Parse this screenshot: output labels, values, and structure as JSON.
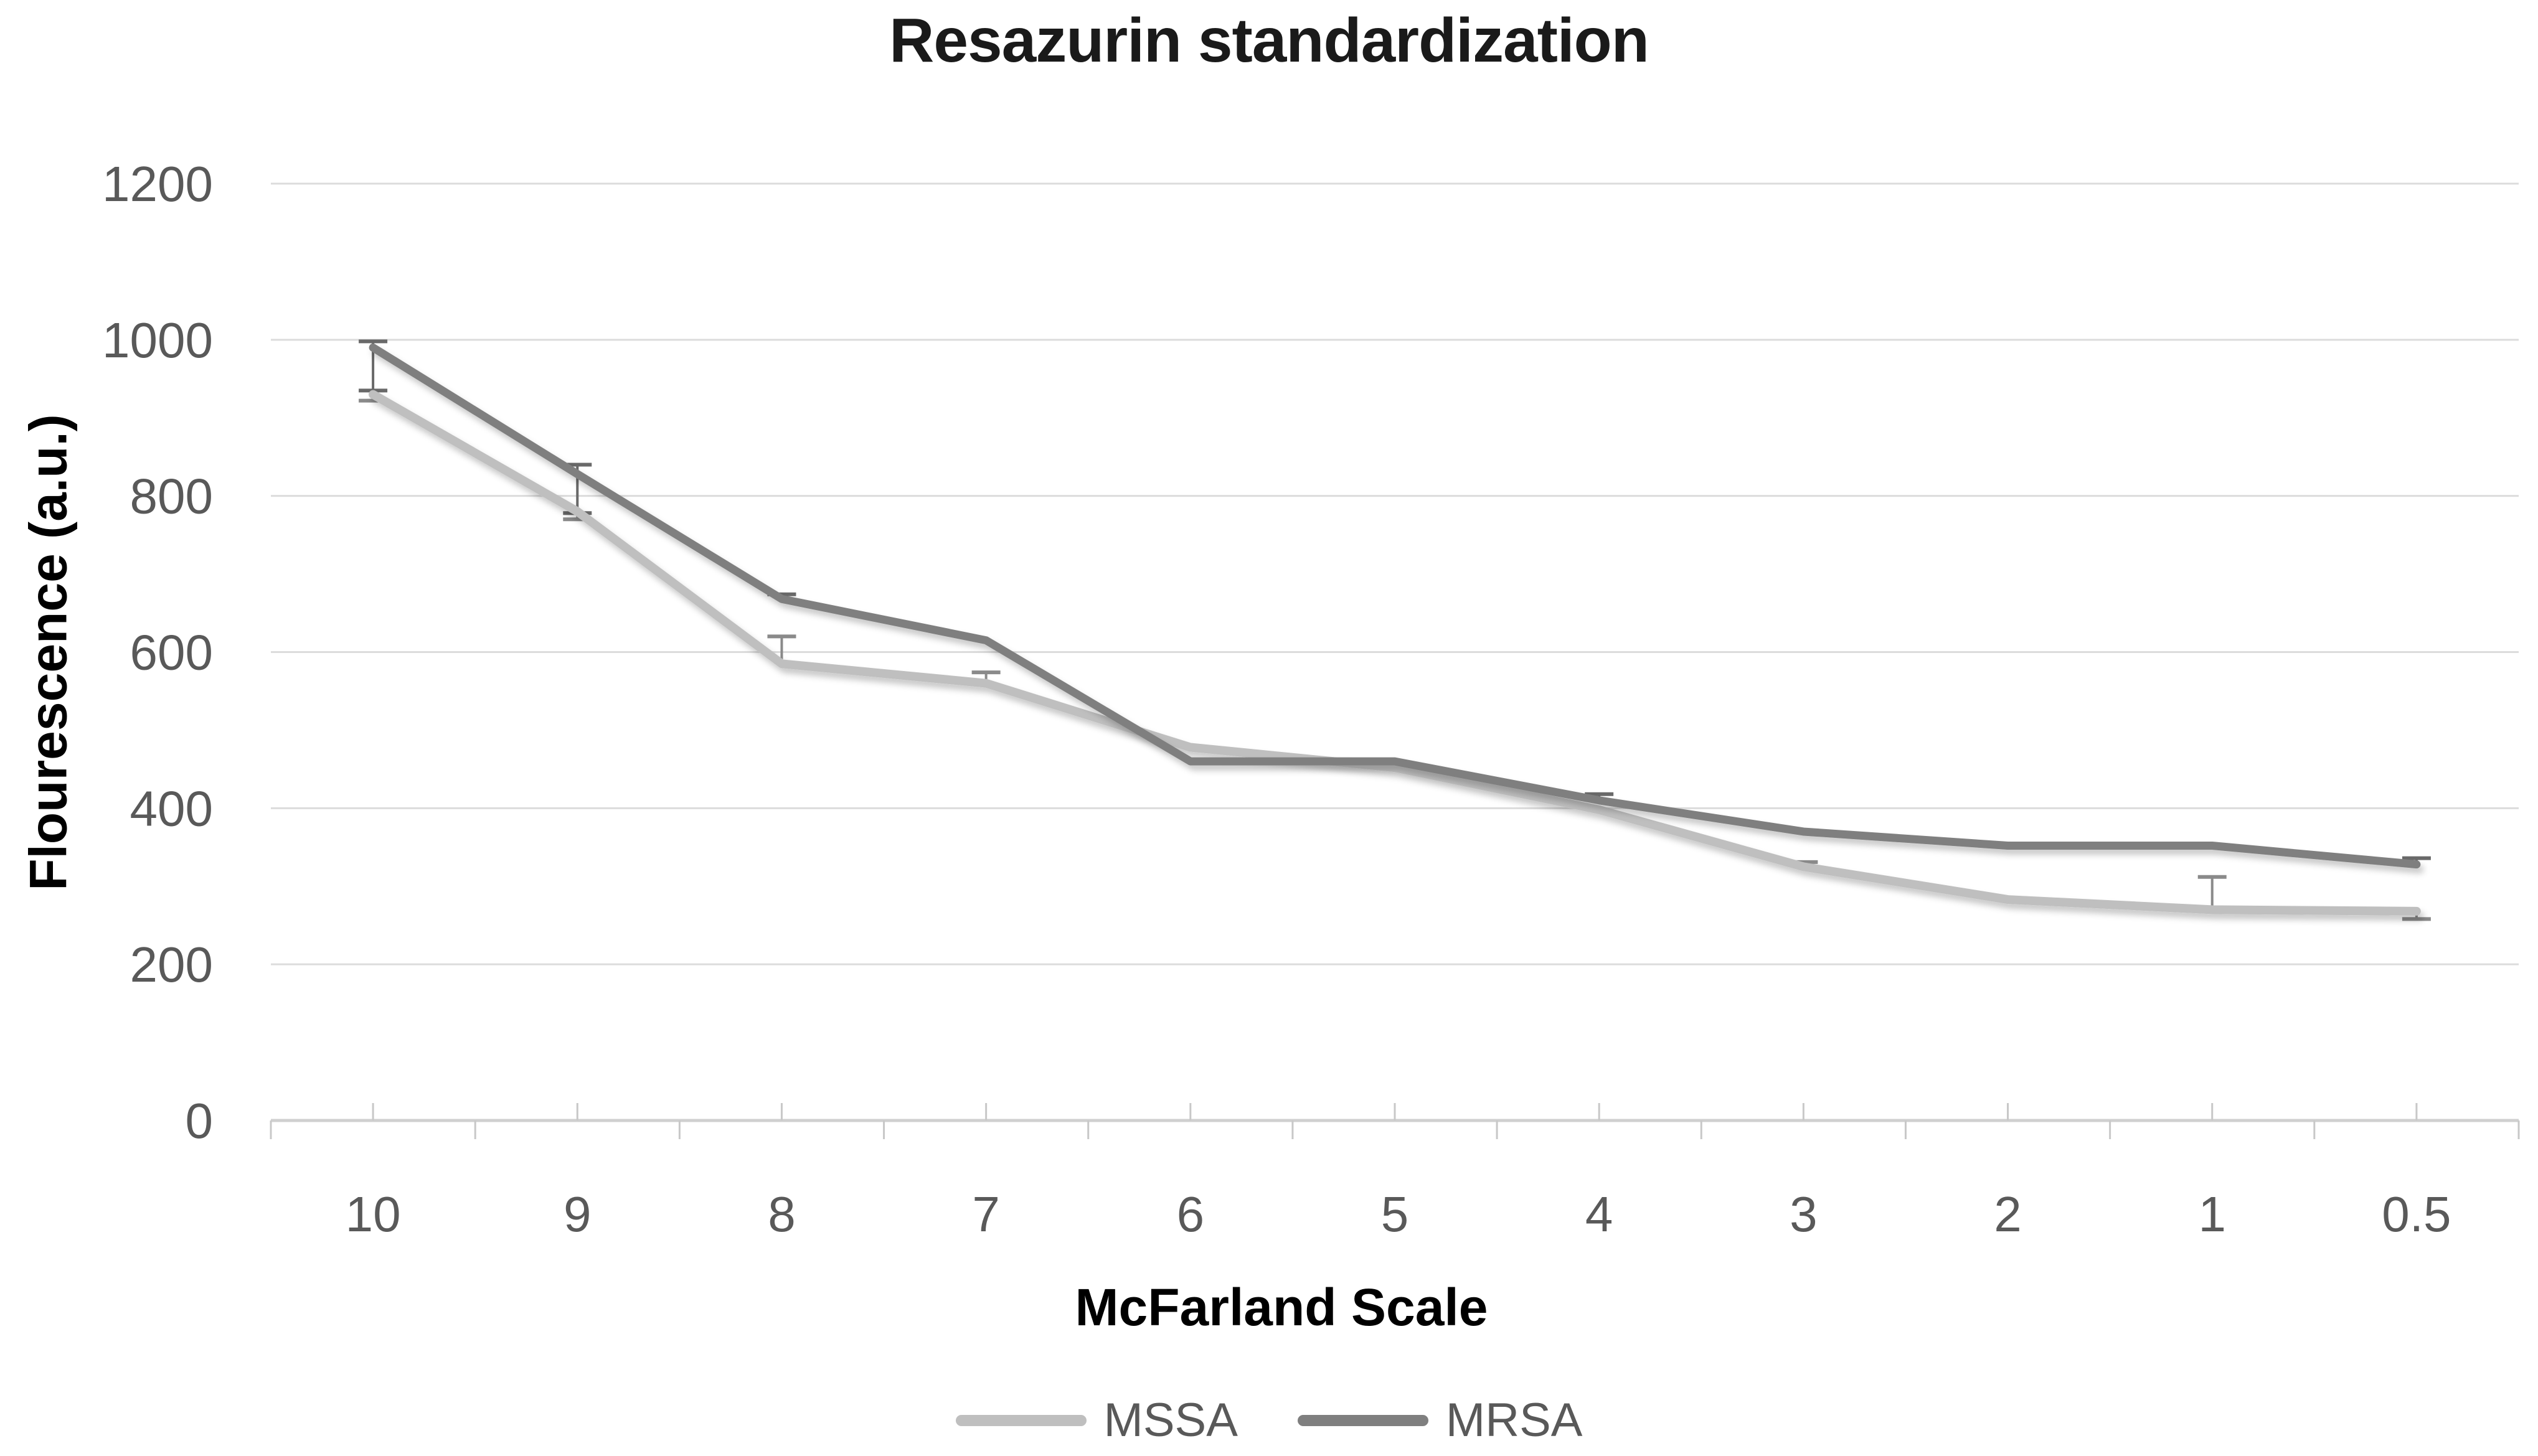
{
  "chart_data": {
    "type": "line",
    "title": "Resazurin standardization",
    "xlabel": "McFarland Scale",
    "ylabel": "Flourescence (a.u.)",
    "categories": [
      "10",
      "9",
      "8",
      "7",
      "6",
      "5",
      "4",
      "3",
      "2",
      "1",
      "0.5"
    ],
    "ylim": [
      0,
      1200
    ],
    "y_ticks": [
      0,
      200,
      400,
      600,
      800,
      1000,
      1200
    ],
    "grid": true,
    "legend_position": "bottom",
    "series": [
      {
        "name": "MSSA",
        "color": "#BFBFBF",
        "error_color": "#8A8A8A",
        "values": [
          930,
          780,
          585,
          560,
          478,
          452,
          398,
          325,
          283,
          270,
          268
        ],
        "err_up": [
          0,
          0,
          35,
          14,
          0,
          0,
          0,
          6,
          0,
          42,
          0
        ],
        "err_down": [
          8,
          10,
          0,
          0,
          0,
          0,
          0,
          0,
          0,
          0,
          10
        ]
      },
      {
        "name": "MRSA",
        "color": "#7F7F7F",
        "error_color": "#696969",
        "values": [
          990,
          828,
          668,
          615,
          460,
          460,
          410,
          370,
          352,
          352,
          328
        ],
        "err_up": [
          8,
          12,
          6,
          0,
          0,
          0,
          8,
          0,
          0,
          0,
          8
        ],
        "err_down": [
          55,
          50,
          0,
          0,
          0,
          0,
          0,
          0,
          0,
          0,
          0
        ]
      }
    ],
    "colors": {
      "background": "#ffffff",
      "title_text": "#1a1a1a",
      "axis_title_text": "#000000",
      "tick_label_text": "#595959",
      "legend_text": "#595959",
      "gridline": "#DCDCDC",
      "axis_line": "#D0D0D0",
      "tick_mark": "#C8C8C8"
    }
  }
}
